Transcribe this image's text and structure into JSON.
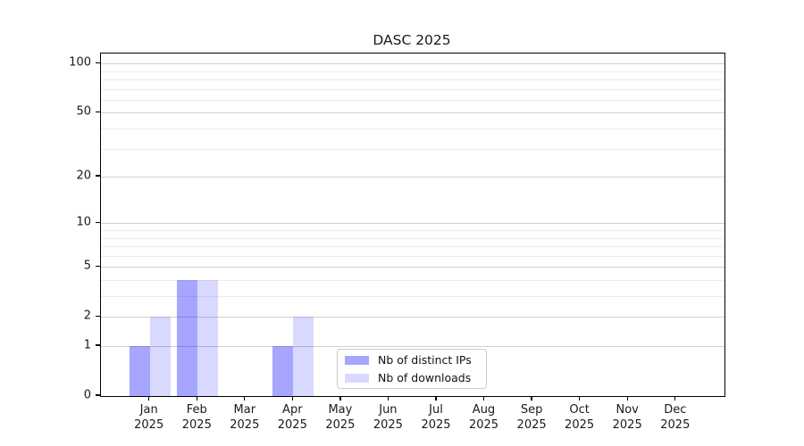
{
  "chart_data": {
    "type": "bar",
    "title": "DASC 2025",
    "categories": [
      "Jan",
      "Feb",
      "Mar",
      "Apr",
      "May",
      "Jun",
      "Jul",
      "Aug",
      "Sep",
      "Oct",
      "Nov",
      "Dec"
    ],
    "category_year": "2025",
    "series": [
      {
        "name": "Nb of distinct IPs",
        "color": "#0000ff",
        "opacity": 0.35,
        "swatch_hex": "#a9a9f5",
        "values": [
          1,
          4,
          0,
          1,
          0,
          0,
          0,
          0,
          0,
          0,
          0,
          0
        ]
      },
      {
        "name": "Nb of downloads",
        "color": "#0000ff",
        "opacity": 0.15,
        "swatch_hex": "#d9d9f8",
        "values": [
          2,
          4,
          0,
          2,
          0,
          0,
          0,
          0,
          0,
          0,
          0,
          0
        ]
      }
    ],
    "xlabel": "",
    "ylabel": "",
    "y_axis": {
      "scale": "log1p",
      "tick_values": [
        0,
        1,
        2,
        5,
        10,
        20,
        50,
        100
      ],
      "minor_gridline_values": [
        3,
        4,
        6,
        7,
        8,
        9,
        30,
        40,
        60,
        70,
        80,
        90
      ],
      "ylim": [
        0,
        115
      ]
    },
    "legend": {
      "position": "bottom-center",
      "border_color": "#cccccc"
    },
    "grid": {
      "major_color": "#d0d0d0",
      "minor_color": "#ececec"
    }
  }
}
